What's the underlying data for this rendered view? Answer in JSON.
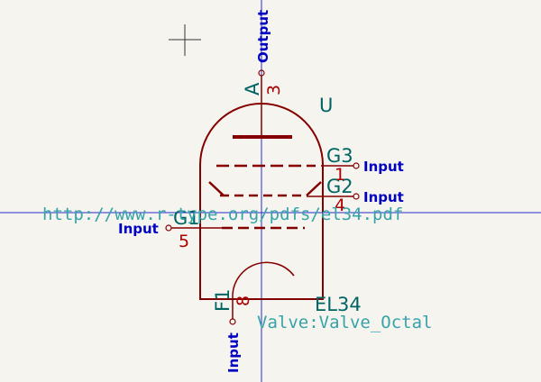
{
  "symbol": {
    "reference": "U",
    "value": "EL34",
    "footprint": "Valve:Valve_Octal",
    "datasheet": "http://www.r-type.org/pdfs/el34.pdf"
  },
  "pins": {
    "anode": {
      "name": "A",
      "number": "3",
      "type": "Output"
    },
    "g3": {
      "name": "G3",
      "number": "1",
      "type": "Input"
    },
    "g2": {
      "name": "G2",
      "number": "4",
      "type": "Input"
    },
    "g1": {
      "name": "G1",
      "number": "5",
      "type": "Input"
    },
    "f1": {
      "name": "F1",
      "number": "8",
      "type": "Input"
    }
  },
  "colors": {
    "background": "#f5f4ef",
    "body": "#840000",
    "pin": "#840000",
    "pin_name": "#006464",
    "pin_number": "#a90000",
    "field_teal": "#36a3a8",
    "pin_type": "#0000c2",
    "crosshair": "#2a2acc"
  }
}
